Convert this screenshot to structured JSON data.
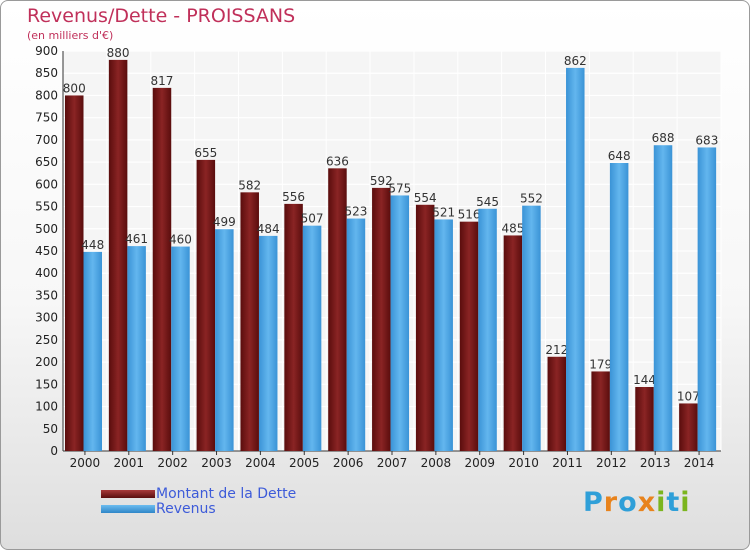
{
  "chart_data": {
    "type": "bar",
    "title": "Revenus/Dette - PROISSANS",
    "subtitle": "(en milliers d'€)",
    "categories": [
      "2000",
      "2001",
      "2002",
      "2003",
      "2004",
      "2005",
      "2006",
      "2007",
      "2008",
      "2009",
      "2010",
      "2011",
      "2012",
      "2013",
      "2014"
    ],
    "series": [
      {
        "name": "Montant de la Dette",
        "color": "#7a1616",
        "values": [
          800,
          880,
          817,
          655,
          582,
          556,
          636,
          592,
          554,
          516,
          485,
          212,
          179,
          144,
          107
        ]
      },
      {
        "name": "Revenus",
        "color": "#4aa6e6",
        "values": [
          448,
          461,
          460,
          499,
          484,
          507,
          523,
          575,
          521,
          545,
          552,
          862,
          648,
          688,
          683
        ]
      }
    ],
    "yticks": [
      0,
      50,
      100,
      150,
      200,
      250,
      300,
      350,
      400,
      450,
      500,
      550,
      600,
      650,
      700,
      750,
      800,
      850,
      900
    ],
    "ylim": [
      0,
      900
    ],
    "grid": true,
    "legend_position": "bottom-left"
  },
  "logo": {
    "letters": [
      {
        "ch": "P",
        "color": "#2f9fd8"
      },
      {
        "ch": "r",
        "color": "#e8831c"
      },
      {
        "ch": "o",
        "color": "#2f9fd8"
      },
      {
        "ch": "x",
        "color": "#e8831c"
      },
      {
        "ch": "i",
        "color": "#7bb51e"
      },
      {
        "ch": "t",
        "color": "#2f9fd8"
      },
      {
        "ch": "i",
        "color": "#7bb51e"
      }
    ]
  }
}
